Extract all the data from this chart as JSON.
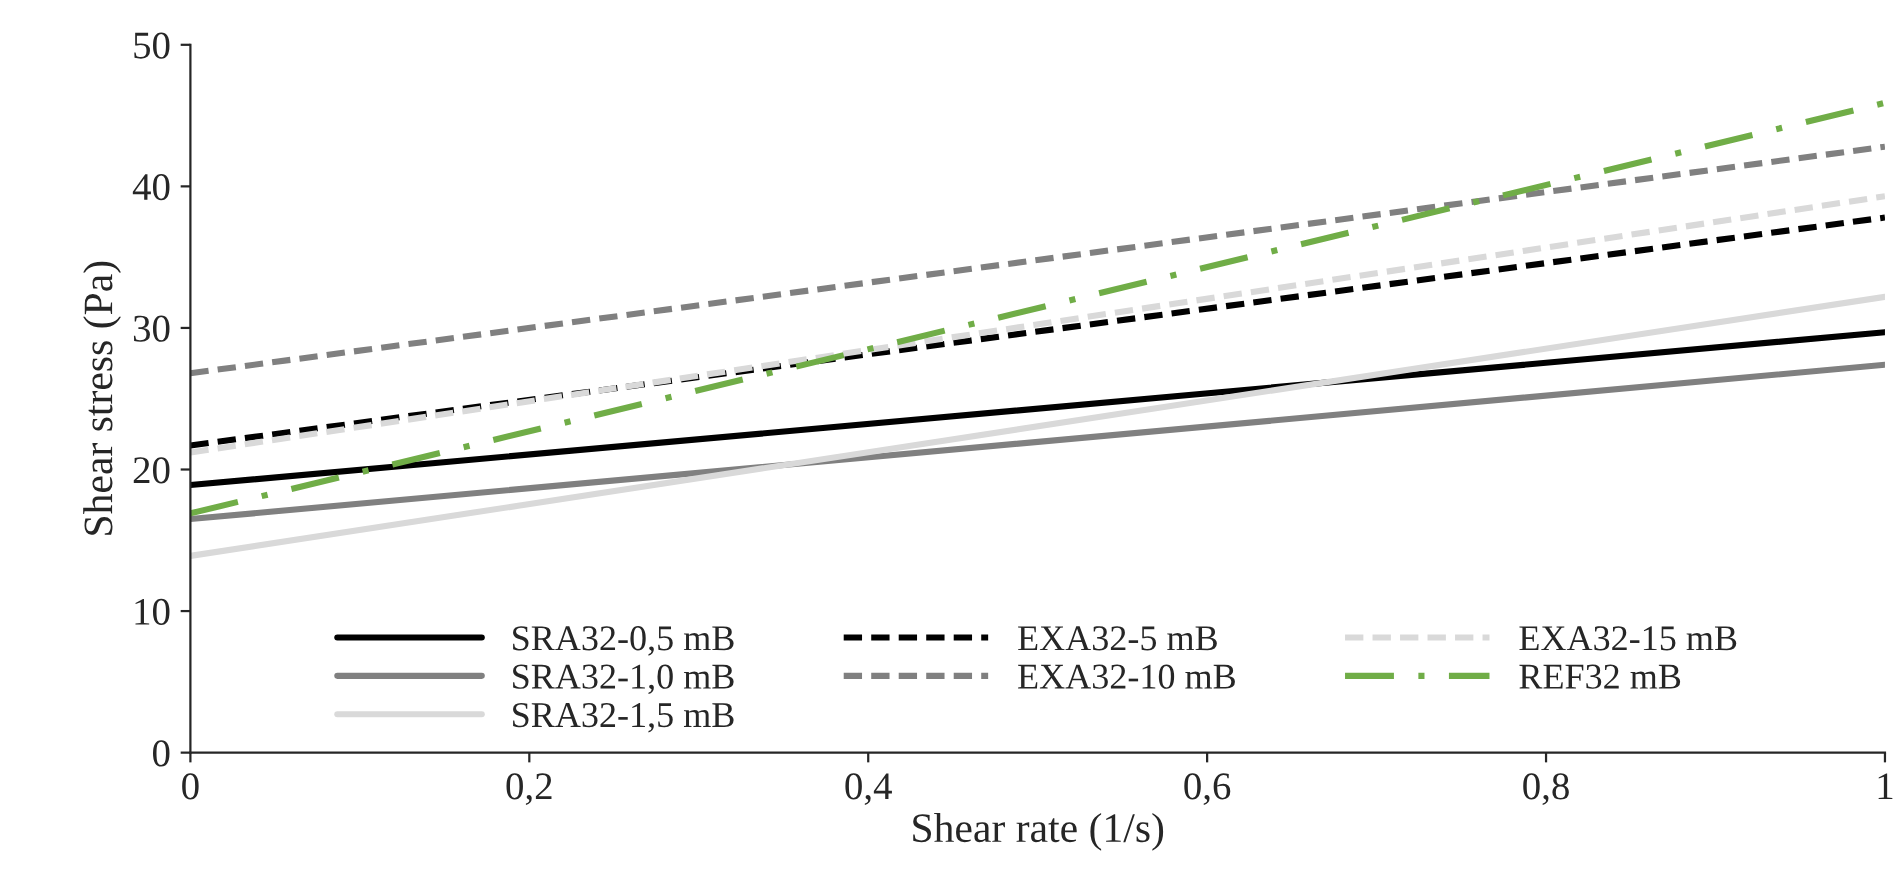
{
  "chart_data": {
    "type": "line",
    "xlabel": "Shear rate (1/s)",
    "ylabel": "Shear stress (Pa)",
    "x": [
      0,
      1
    ],
    "xlim": [
      0,
      1
    ],
    "ylim": [
      0,
      50
    ],
    "xticks": [
      0,
      {
        "value": 0.2,
        "label": "0,2"
      },
      {
        "value": 0.4,
        "label": "0,4"
      },
      {
        "value": 0.6,
        "label": "0,6"
      },
      {
        "value": 0.8,
        "label": "0,8"
      },
      1
    ],
    "yticks": [
      0,
      10,
      20,
      30,
      40,
      50
    ],
    "grid": false,
    "legend": "bottom",
    "series": [
      {
        "name": "SRA32-0,5 mB",
        "color": "#000000",
        "values": [
          18.9,
          29.7
        ],
        "line_style": "solid"
      },
      {
        "name": "SRA32-1,0 mB",
        "color": "#808080",
        "values": [
          16.5,
          27.4
        ],
        "line_style": "solid"
      },
      {
        "name": "SRA32-1,5 mB",
        "color": "#d9d9d9",
        "values": [
          13.9,
          32.2
        ],
        "line_style": "solid"
      },
      {
        "name": "EXA32-5 mB",
        "color": "#000000",
        "values": [
          21.7,
          37.8
        ],
        "line_style": "dashed"
      },
      {
        "name": "EXA32-10 mB",
        "color": "#808080",
        "values": [
          26.8,
          42.8
        ],
        "line_style": "dashed"
      },
      {
        "name": "EXA32-15 mB",
        "color": "#d9d9d9",
        "values": [
          21.2,
          39.3
        ],
        "line_style": "dashed"
      },
      {
        "name": "REF32 mB",
        "color": "#70ad47",
        "values": [
          16.9,
          45.9
        ],
        "line_style": "dashdot"
      }
    ]
  }
}
